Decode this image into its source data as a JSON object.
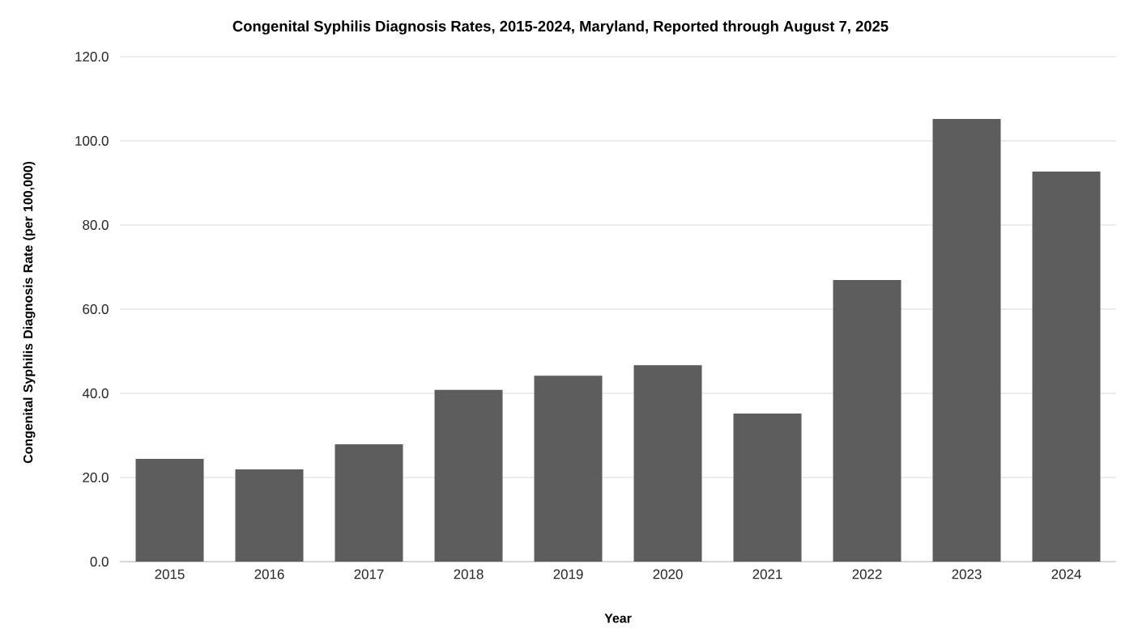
{
  "chart_data": {
    "type": "bar",
    "title": "Congenital Syphilis Diagnosis Rates, 2015-2024, Maryland, Reported through August 7, 2025",
    "xlabel": "Year",
    "ylabel": "Congenital Syphilis Diagnosis Rate (per 100,000)",
    "categories": [
      "2015",
      "2016",
      "2017",
      "2018",
      "2019",
      "2020",
      "2021",
      "2022",
      "2023",
      "2024"
    ],
    "values": [
      24.4,
      21.9,
      27.9,
      40.8,
      44.2,
      46.7,
      35.2,
      66.9,
      105.2,
      92.7
    ],
    "color": "#5d5d5d",
    "ylim": [
      0,
      120
    ],
    "yticks": [
      {
        "value": 0,
        "label": "0.0"
      },
      {
        "value": 20,
        "label": "20.0"
      },
      {
        "value": 40,
        "label": "40.0"
      },
      {
        "value": 60,
        "label": "60.0"
      },
      {
        "value": 80,
        "label": "80.0"
      },
      {
        "value": 100,
        "label": "100.0"
      },
      {
        "value": 120,
        "label": "120.0"
      }
    ],
    "grid": "y"
  }
}
